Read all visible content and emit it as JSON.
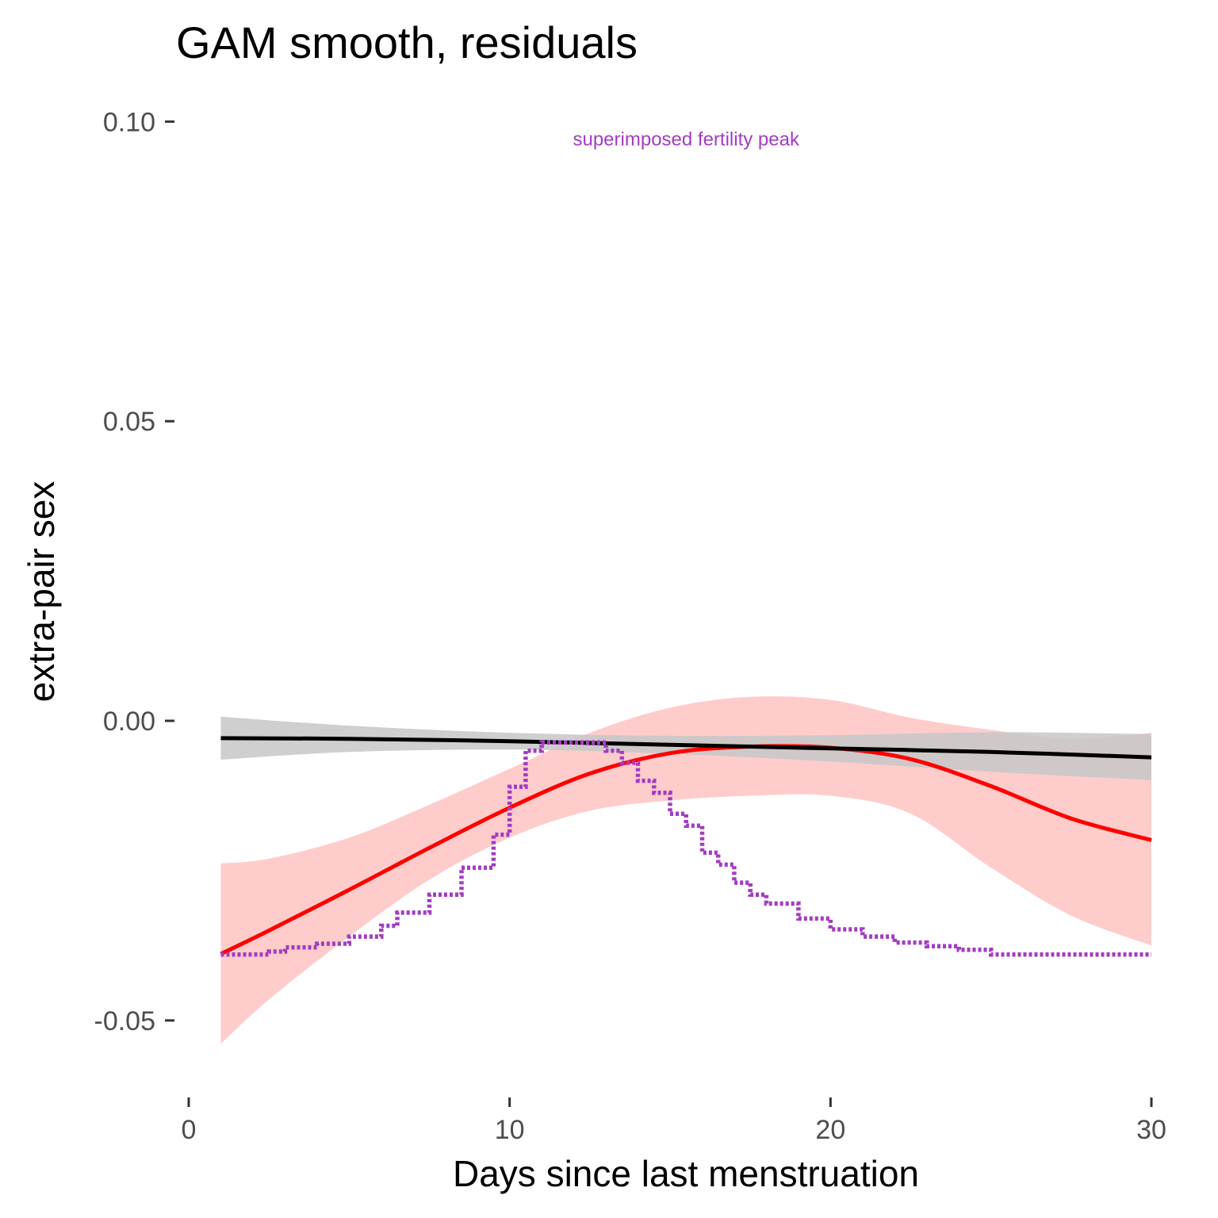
{
  "chart_data": {
    "type": "line",
    "title": "GAM smooth, residuals",
    "xlabel": "Days since last menstruation",
    "ylabel": "extra-pair sex",
    "xlim": [
      0,
      30
    ],
    "ylim": [
      -0.061,
      0.106
    ],
    "x_ticks": [
      0,
      10,
      20,
      30
    ],
    "x_tick_labels": [
      "0",
      "10",
      "20",
      "30"
    ],
    "y_ticks": [
      -0.05,
      0,
      0.05,
      0.1
    ],
    "y_tick_labels": [
      "-0.05",
      "0.00",
      "0.05",
      "0.10"
    ],
    "grid": false,
    "legend": "none",
    "annotations": [
      {
        "text": "superimposed fertility peak",
        "x": 15.5,
        "y": 0.096,
        "color": "#a43bc2"
      }
    ],
    "series": [
      {
        "style": "solid",
        "color": "#000000",
        "x": [
          1,
          5,
          10,
          15,
          20,
          25,
          30
        ],
        "y": [
          -0.0029,
          -0.003,
          -0.0034,
          -0.004,
          -0.0046,
          -0.0052,
          -0.0061
        ],
        "band": {
          "color": "#c7c7c7",
          "lower": [
            -0.0065,
            -0.0052,
            -0.0048,
            -0.0055,
            -0.0068,
            -0.0085,
            -0.0099
          ],
          "upper": [
            0.0007,
            -0.0008,
            -0.002,
            -0.0025,
            -0.0024,
            -0.0019,
            -0.0022
          ]
        }
      },
      {
        "style": "solid",
        "color": "#ff0000",
        "x": [
          1,
          2.5,
          5,
          7.5,
          10,
          12.5,
          15,
          17.5,
          20,
          22.5,
          25,
          27.5,
          30
        ],
        "y": [
          -0.0389,
          -0.035,
          -0.0282,
          -0.0212,
          -0.0145,
          -0.0088,
          -0.0054,
          -0.0043,
          -0.0045,
          -0.0064,
          -0.0109,
          -0.0163,
          -0.0199
        ],
        "band": {
          "color": "#ffcccc",
          "lower": [
            -0.0539,
            -0.0465,
            -0.036,
            -0.0265,
            -0.0195,
            -0.015,
            -0.0133,
            -0.0125,
            -0.0125,
            -0.0155,
            -0.0245,
            -0.0325,
            -0.0375
          ],
          "upper": [
            -0.0238,
            -0.023,
            -0.0195,
            -0.014,
            -0.008,
            -0.002,
            0.0022,
            0.004,
            0.0035,
            0.0005,
            -0.0015,
            -0.003,
            -0.002
          ]
        }
      },
      {
        "style": "dotted-step",
        "color": "#a43bc2",
        "x": [
          1,
          2.5,
          3,
          4,
          5,
          6,
          6.5,
          7.5,
          8.5,
          9.5,
          10,
          10.5,
          11,
          11.5,
          12,
          12.5,
          13,
          13.5,
          14,
          14.5,
          15,
          15.5,
          16,
          16.5,
          17,
          17.5,
          18,
          19,
          20,
          21,
          22,
          23,
          24,
          25,
          30
        ],
        "y": [
          -0.039,
          -0.0385,
          -0.0378,
          -0.0372,
          -0.036,
          -0.0342,
          -0.032,
          -0.029,
          -0.0245,
          -0.019,
          -0.011,
          -0.005,
          -0.0036,
          -0.0036,
          -0.0036,
          -0.0036,
          -0.005,
          -0.007,
          -0.01,
          -0.012,
          -0.0155,
          -0.0175,
          -0.022,
          -0.024,
          -0.027,
          -0.029,
          -0.0305,
          -0.033,
          -0.0348,
          -0.036,
          -0.037,
          -0.0376,
          -0.0382,
          -0.039,
          -0.039
        ]
      }
    ]
  }
}
